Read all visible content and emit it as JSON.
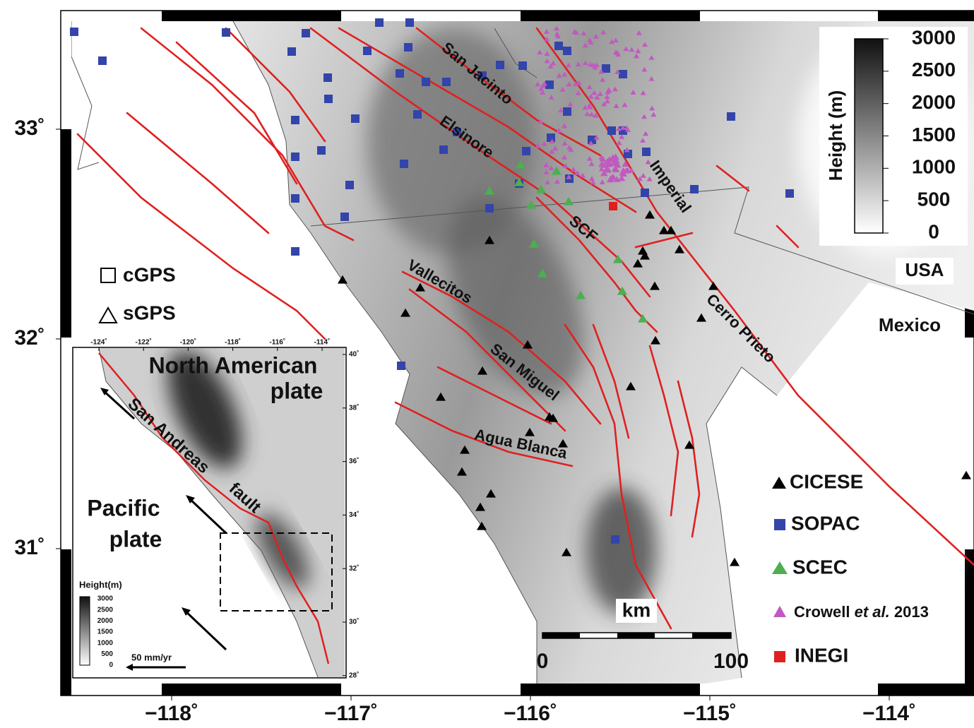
{
  "map": {
    "lon_ticks": [
      {
        "value": -118,
        "label": "−118˚"
      },
      {
        "value": -117,
        "label": "−117˚"
      },
      {
        "value": -116,
        "label": "−116˚"
      },
      {
        "value": -115,
        "label": "−115˚"
      },
      {
        "value": -114,
        "label": "−114˚"
      }
    ],
    "lat_ticks": [
      {
        "value": 33,
        "label": "33˚"
      },
      {
        "value": 32,
        "label": "32˚"
      },
      {
        "value": 31,
        "label": "31˚"
      }
    ],
    "fault_labels": [
      "San Jacinto",
      "Elsinore",
      "Imperial",
      "SCF",
      "Vallecitos",
      "San Miguel",
      "Agua Blanca",
      "Cerro Prieto"
    ],
    "country_labels": [
      "USA",
      "Mexico"
    ]
  },
  "colorbar": {
    "title": "Height (m)",
    "ticks": [
      3000,
      2500,
      2000,
      1500,
      1000,
      500,
      0
    ]
  },
  "station_type_legend": [
    "cGPS",
    "sGPS"
  ],
  "network_legend": {
    "cicese": "CICESE",
    "sopac": "SOPAC",
    "scec": "SCEC",
    "crowell": {
      "author": "Crowell",
      "etal": "et al.",
      "year": "2013"
    },
    "inegi": "INEGI"
  },
  "scale_bar": {
    "unit": "km",
    "ticks": [
      0,
      100
    ]
  },
  "inset": {
    "lon_ticks": [
      {
        "value": -124,
        "label": "-124˚"
      },
      {
        "value": -122,
        "label": "-122˚"
      },
      {
        "value": -120,
        "label": "-120˚"
      },
      {
        "value": -118,
        "label": "-118˚"
      },
      {
        "value": -116,
        "label": "-116˚"
      },
      {
        "value": -114,
        "label": "-114˚"
      }
    ],
    "lat_ticks": [
      {
        "value": 40,
        "label": "40˚"
      },
      {
        "value": 38,
        "label": "38˚"
      },
      {
        "value": 36,
        "label": "36˚"
      },
      {
        "value": 34,
        "label": "34˚"
      },
      {
        "value": 32,
        "label": "32˚"
      },
      {
        "value": 30,
        "label": "30˚"
      },
      {
        "value": 28,
        "label": "28˚"
      }
    ],
    "north_plate": [
      "North American",
      "plate"
    ],
    "pacific_plate": [
      "Pacific",
      "plate"
    ],
    "fault": [
      "San Andreas",
      "fault"
    ],
    "colorbar": {
      "title": "Height(m)",
      "ticks": [
        3000,
        2500,
        2000,
        1500,
        1000,
        500,
        0
      ]
    },
    "velocity_label": "50 mm/yr"
  }
}
